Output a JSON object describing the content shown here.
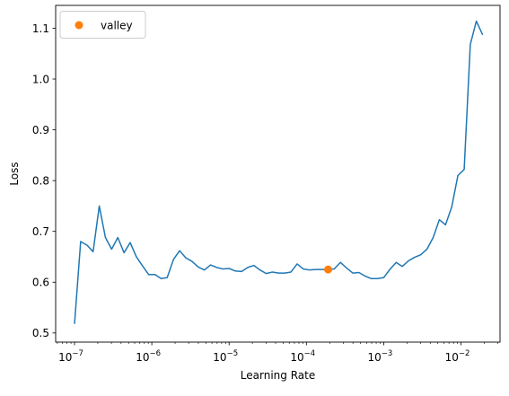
{
  "chart_data": {
    "type": "line",
    "xlabel": "Learning Rate",
    "ylabel": "Loss",
    "xscale": "log",
    "xlim": [
      5.7e-08,
      0.032
    ],
    "ylim": [
      0.482,
      1.145
    ],
    "x_ticks": [
      {
        "value": 1e-07,
        "base": "10",
        "exp": "−7"
      },
      {
        "value": 1e-06,
        "base": "10",
        "exp": "−6"
      },
      {
        "value": 1e-05,
        "base": "10",
        "exp": "−5"
      },
      {
        "value": 0.0001,
        "base": "10",
        "exp": "−4"
      },
      {
        "value": 0.001,
        "base": "10",
        "exp": "−3"
      },
      {
        "value": 0.01,
        "base": "10",
        "exp": "−2"
      }
    ],
    "y_ticks": [
      {
        "value": 0.5,
        "label": "0.5"
      },
      {
        "value": 0.6,
        "label": "0.6"
      },
      {
        "value": 0.7,
        "label": "0.7"
      },
      {
        "value": 0.8,
        "label": "0.8"
      },
      {
        "value": 0.9,
        "label": "0.9"
      },
      {
        "value": 1.0,
        "label": "1.0"
      },
      {
        "value": 1.1,
        "label": "1.1"
      }
    ],
    "grid": false,
    "legend_position": "top-left",
    "series": [
      {
        "name": "",
        "color": "#1f77b4",
        "x": [
          1e-07,
          1.2e-07,
          1.45e-07,
          1.74e-07,
          2.09e-07,
          2.51e-07,
          3.02e-07,
          3.63e-07,
          4.37e-07,
          5.25e-07,
          6.31e-07,
          7.59e-07,
          9.12e-07,
          1.1e-06,
          1.32e-06,
          1.58e-06,
          1.91e-06,
          2.29e-06,
          2.75e-06,
          3.31e-06,
          3.98e-06,
          4.79e-06,
          5.75e-06,
          6.92e-06,
          8.32e-06,
          1e-05,
          1.2e-05,
          1.45e-05,
          1.74e-05,
          2.09e-05,
          2.51e-05,
          3.02e-05,
          3.63e-05,
          4.37e-05,
          5.25e-05,
          6.31e-05,
          7.59e-05,
          9.12e-05,
          0.00011,
          0.000132,
          0.000158,
          0.000191,
          0.000229,
          0.000275,
          0.000331,
          0.000398,
          0.000479,
          0.000575,
          0.000692,
          0.000832,
          0.001,
          0.0012,
          0.00145,
          0.00174,
          0.00209,
          0.00251,
          0.00302,
          0.00363,
          0.00437,
          0.00525,
          0.00631,
          0.00759,
          0.00912,
          0.011,
          0.0132,
          0.0158,
          0.0191
        ],
        "y": [
          0.518,
          0.68,
          0.673,
          0.66,
          0.75,
          0.688,
          0.665,
          0.688,
          0.658,
          0.678,
          0.65,
          0.632,
          0.615,
          0.615,
          0.607,
          0.609,
          0.645,
          0.662,
          0.648,
          0.641,
          0.63,
          0.624,
          0.634,
          0.629,
          0.626,
          0.627,
          0.622,
          0.621,
          0.629,
          0.633,
          0.624,
          0.617,
          0.62,
          0.618,
          0.618,
          0.62,
          0.636,
          0.626,
          0.624,
          0.625,
          0.625,
          0.625,
          0.626,
          0.639,
          0.628,
          0.618,
          0.619,
          0.612,
          0.607,
          0.607,
          0.609,
          0.625,
          0.639,
          0.631,
          0.642,
          0.649,
          0.654,
          0.665,
          0.688,
          0.723,
          0.713,
          0.748,
          0.81,
          0.822,
          1.068,
          1.114,
          1.087
        ]
      },
      {
        "name": "valley",
        "type": "scatter",
        "color": "#ff7f0e",
        "x": [
          0.000191
        ],
        "y": [
          0.625
        ]
      }
    ]
  }
}
